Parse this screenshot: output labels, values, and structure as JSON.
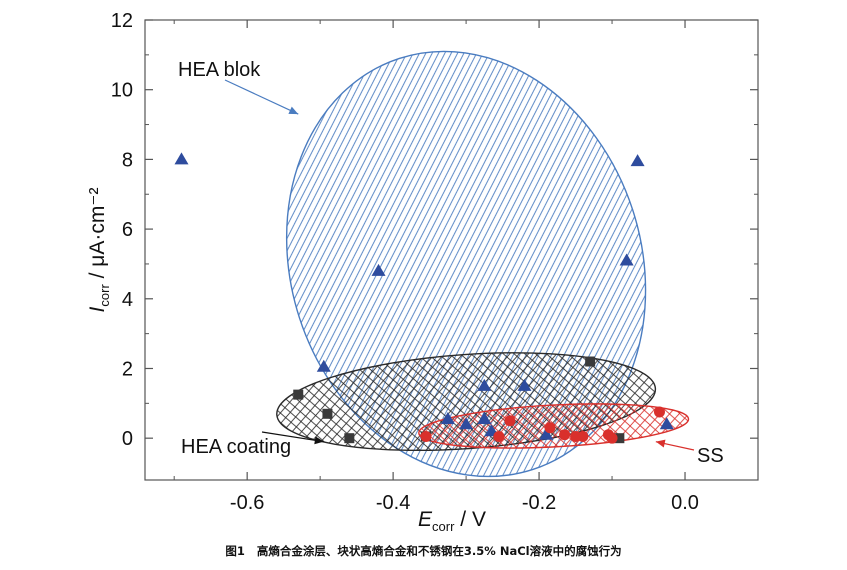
{
  "chart_data": {
    "type": "scatter",
    "title": "",
    "xlabel_main": "E",
    "xlabel_sub": "corr",
    "xlabel_unit": " / V",
    "ylabel_main": "I",
    "ylabel_sub": "corr",
    "ylabel_unit": " / μA·cm⁻²",
    "xlim": [
      -0.74,
      0.1
    ],
    "ylim": [
      -1.2,
      12
    ],
    "x_ticks": [
      -0.6,
      -0.4,
      -0.2,
      0.0
    ],
    "x_tick_labels": [
      "-0.6",
      "-0.4",
      "-0.2",
      "0.0"
    ],
    "y_ticks": [
      0,
      2,
      4,
      6,
      8,
      10,
      12
    ],
    "y_tick_labels": [
      "0",
      "2",
      "4",
      "6",
      "8",
      "10",
      "12"
    ],
    "grid": false,
    "series": [
      {
        "name": "HEA blok",
        "marker": "triangle",
        "color": "#2E4C9E",
        "points": [
          [
            -0.69,
            8.0
          ],
          [
            -0.065,
            7.95
          ],
          [
            -0.08,
            5.1
          ],
          [
            -0.42,
            4.8
          ],
          [
            -0.495,
            2.05
          ],
          [
            -0.275,
            1.5
          ],
          [
            -0.22,
            1.5
          ],
          [
            -0.325,
            0.55
          ],
          [
            -0.3,
            0.4
          ],
          [
            -0.275,
            0.55
          ],
          [
            -0.265,
            0.2
          ],
          [
            -0.19,
            0.1
          ],
          [
            -0.025,
            0.4
          ]
        ]
      },
      {
        "name": "HEA coating",
        "marker": "square",
        "color": "#3A3A3A",
        "points": [
          [
            -0.53,
            1.25
          ],
          [
            -0.49,
            0.7
          ],
          [
            -0.46,
            0.0
          ],
          [
            -0.13,
            2.2
          ],
          [
            -0.355,
            0.05
          ],
          [
            -0.09,
            0.0
          ]
        ]
      },
      {
        "name": "SS",
        "marker": "circle",
        "color": "#D9302C",
        "points": [
          [
            -0.355,
            0.05
          ],
          [
            -0.24,
            0.5
          ],
          [
            -0.255,
            0.05
          ],
          [
            -0.185,
            0.3
          ],
          [
            -0.165,
            0.1
          ],
          [
            -0.15,
            0.05
          ],
          [
            -0.14,
            0.05
          ],
          [
            -0.105,
            0.1
          ],
          [
            -0.1,
            0.0
          ],
          [
            -0.035,
            0.75
          ]
        ]
      }
    ],
    "regions": [
      {
        "label": "HEA blok",
        "color": "#4A7CC0",
        "hatch": "diagonal",
        "center": [
          -0.3,
          5.0
        ],
        "semi_axes": [
          0.24,
          6.2
        ],
        "angle_deg": -18
      },
      {
        "label": "HEA coating",
        "color": "#2A2A2A",
        "hatch": "cross",
        "center": [
          -0.3,
          1.05
        ],
        "semi_axes": [
          0.26,
          1.35
        ],
        "angle_deg": -4
      },
      {
        "label": "SS",
        "color": "#D9302C",
        "hatch": "cross",
        "center": [
          -0.18,
          0.35
        ],
        "semi_axes": [
          0.185,
          0.6
        ],
        "angle_deg": -3
      }
    ],
    "annotations": [
      {
        "text": "HEA blok",
        "target": [
          -0.53,
          9.3
        ]
      },
      {
        "text": "HEA coating",
        "target": [
          -0.495,
          -0.1
        ]
      },
      {
        "text": "SS",
        "target": [
          -0.04,
          -0.1
        ]
      }
    ]
  },
  "caption": {
    "number": "图1",
    "text": "高熵合金涂层、块状高熵合金和不锈钢在3.5% NaCl溶液中的腐蚀行为"
  }
}
